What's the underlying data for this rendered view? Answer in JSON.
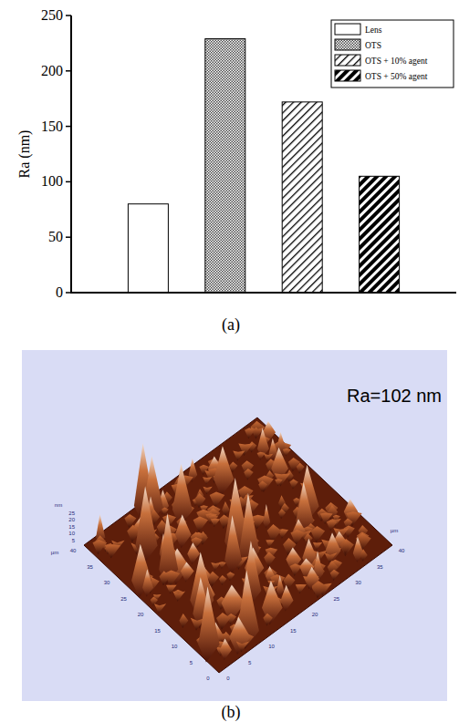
{
  "chart_data": {
    "type": "bar",
    "ylabel": "Ra (nm)",
    "categories": [
      null
    ],
    "series": [
      {
        "name": "Lens",
        "color": "#ffffff",
        "values": [
          80
        ]
      },
      {
        "name": "OTS",
        "color": "#4a4a4a",
        "values": [
          229
        ]
      },
      {
        "name": "OTS + 10% agent",
        "color": "#000000",
        "values": [
          172
        ]
      },
      {
        "name": "OTS + 50% agent",
        "color": "#000000",
        "values": [
          105
        ]
      }
    ],
    "ylim": [
      0,
      250
    ],
    "yticks": [
      0,
      50,
      100,
      150,
      200,
      250
    ],
    "grid": false,
    "legend": "upper right"
  },
  "panel_labels": [
    "(a)",
    "(b)"
  ],
  "afm_image": {
    "ra_label": "Ra=102 nm",
    "z_unit": "nm",
    "z_ticks": [
      5,
      10,
      15,
      20,
      25
    ],
    "x_unit": "µm",
    "x_ticks": [
      0,
      5,
      10,
      15,
      20,
      25,
      30,
      35,
      40
    ],
    "y_unit": "µm",
    "y_ticks": [
      0,
      5,
      10,
      15,
      20,
      25,
      30,
      35,
      40
    ]
  }
}
